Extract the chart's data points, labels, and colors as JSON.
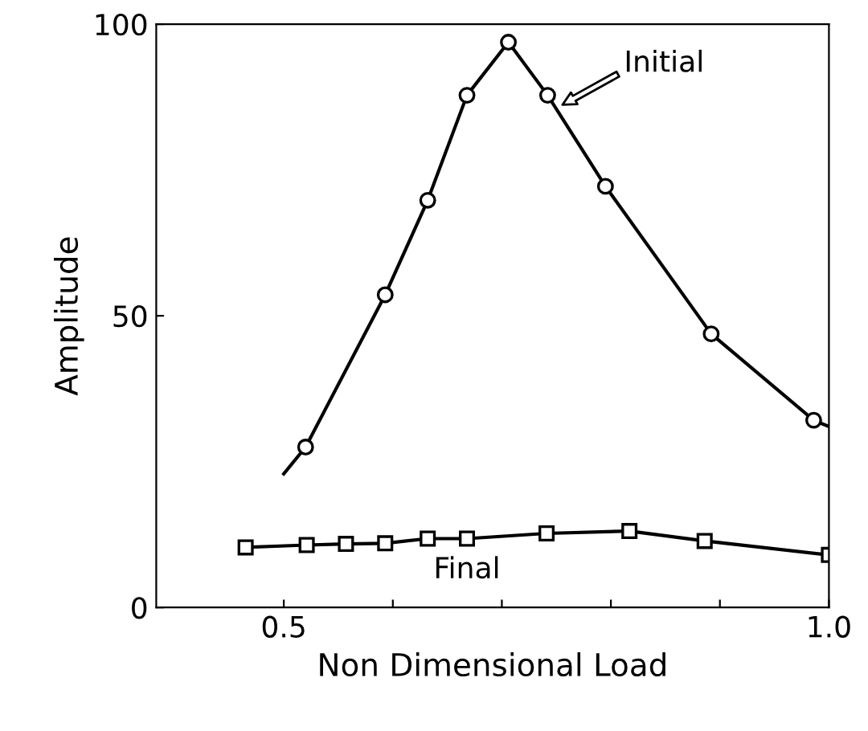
{
  "chart_data": {
    "type": "line",
    "xlabel": "Non Dimensional Load",
    "ylabel": "Amplitude",
    "xlim": [
      0.383,
      1.0
    ],
    "xticks": [
      {
        "value": 0.5,
        "label": "0.5"
      },
      {
        "value": 0.6,
        "label": null
      },
      {
        "value": 0.7,
        "label": null
      },
      {
        "value": 0.8,
        "label": null
      },
      {
        "value": 0.9,
        "label": null
      },
      {
        "value": 1.0,
        "label": "1.0"
      }
    ],
    "ylim": [
      0,
      100
    ],
    "yticks": [
      0,
      50,
      100
    ],
    "grid": false,
    "legend": false,
    "series": [
      {
        "color": "#000000",
        "marker": "none",
        "x": [
          0.5,
          0.52,
          0.593,
          0.632,
          0.668,
          0.706,
          0.742,
          0.795,
          0.892,
          0.986,
          1.0
        ],
        "values": [
          22.9,
          27.5,
          53.6,
          69.8,
          87.8,
          96.9,
          87.8,
          72.2,
          46.9,
          32.1,
          31.0
        ]
      },
      {
        "type": "scatter",
        "name": "Initial",
        "color": "#000000",
        "marker": "circle",
        "x": [
          0.52,
          0.593,
          0.632,
          0.668,
          0.706,
          0.742,
          0.795,
          0.892,
          0.986
        ],
        "values": [
          27.5,
          53.6,
          69.8,
          87.8,
          96.9,
          87.8,
          72.2,
          46.9,
          32.1
        ]
      },
      {
        "name": "Final",
        "color": "#000000",
        "marker": "square",
        "x": [
          0.465,
          0.521,
          0.557,
          0.593,
          0.632,
          0.668,
          0.741,
          0.817,
          0.886,
          1.0
        ],
        "values": [
          10.3,
          10.7,
          10.9,
          11.0,
          11.8,
          11.8,
          12.7,
          13.1,
          11.4,
          9.0
        ]
      }
    ]
  }
}
